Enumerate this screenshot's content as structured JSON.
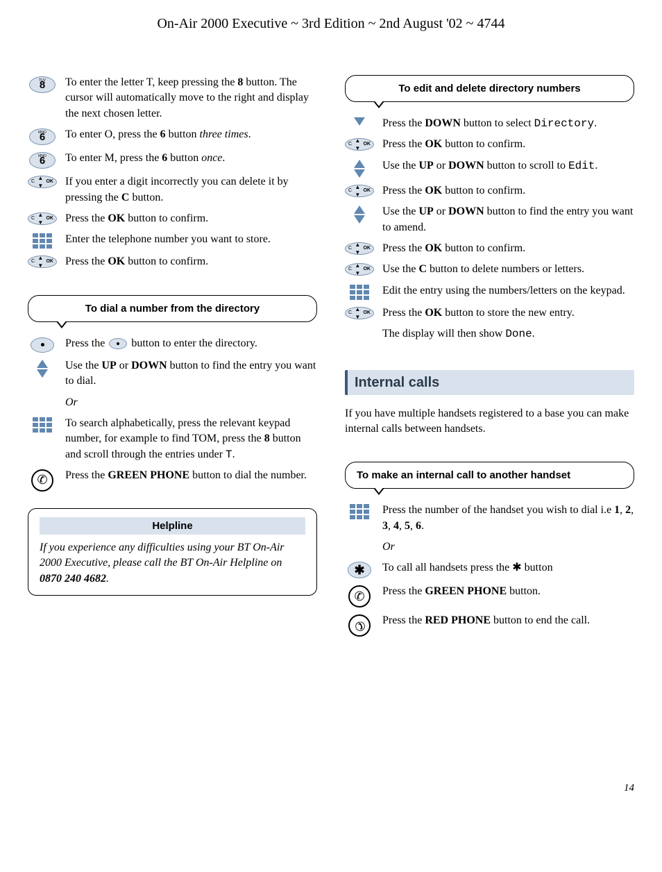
{
  "header": "On-Air 2000 Executive ~ 3rd Edition ~ 2nd August '02 ~ 4744",
  "page_number": "14",
  "colors": {
    "key_bg": "#d9e2ec",
    "key_border": "#7a94b0",
    "arrow": "#6088b0",
    "section_bg": "#d9e2ec",
    "section_border": "#3a5a7a"
  },
  "left": {
    "steps_top": [
      {
        "icon": "key-8",
        "html": "To enter the letter T, keep pressing the <strong>8</strong> button. The cursor will automatically move to the right and display the next chosen letter."
      },
      {
        "icon": "key-6",
        "html": "To enter O, press the <strong>6</strong> button <em>three times</em>."
      },
      {
        "icon": "key-6",
        "html": "To enter M, press the <strong>6</strong> button <em>once</em>."
      },
      {
        "icon": "nav",
        "html": "If you enter a digit incorrectly you can delete it by pressing the <strong>C</strong> button."
      },
      {
        "icon": "nav",
        "html": "Press the <strong>OK</strong> button to confirm."
      },
      {
        "icon": "keypad",
        "html": "Enter the telephone number you want to store."
      },
      {
        "icon": "nav",
        "html": "Press the <strong>OK</strong> button to confirm."
      }
    ],
    "callout_dial": "To dial a number from the directory",
    "steps_dial": [
      {
        "icon": "dot",
        "html": "Press the <span class=\"dot-btn-inline\"></span> button to enter the directory."
      },
      {
        "icon": "updown",
        "html": "Use the <strong>UP</strong> or <strong>DOWN</strong> button to find the entry you want to dial."
      },
      {
        "icon": "none",
        "html": "<em>Or</em>"
      },
      {
        "icon": "keypad",
        "html": "To search alphabetically, press the relevant keypad number, for example to find TOM, press the <strong>8</strong> button and scroll through the entries under <span class=\"mono\">T</span>."
      },
      {
        "icon": "phone-green",
        "html": "Press the <strong>GREEN PHONE</strong> button to dial the number."
      }
    ],
    "helpline": {
      "title": "Helpline",
      "html": "If you experience any difficulties using your BT On-Air 2000 Executive, please call the BT On-Air Helpline on <strong>0870 240 4682</strong>."
    }
  },
  "right": {
    "callout_edit": "To edit and delete directory numbers",
    "steps_edit": [
      {
        "icon": "down",
        "html": "Press the <strong>DOWN</strong> button to select <span class=\"mono\">Directory</span>."
      },
      {
        "icon": "nav",
        "html": "Press the <strong>OK</strong> button to confirm."
      },
      {
        "icon": "updown",
        "html": "Use the <strong>UP</strong> or <strong>DOWN</strong> button to scroll to <span class=\"mono\">Edit</span>."
      },
      {
        "icon": "nav",
        "html": "Press the <strong>OK</strong> button to confirm."
      },
      {
        "icon": "updown",
        "html": "Use the <strong>UP</strong> or <strong>DOWN</strong> button to find the entry you want to amend."
      },
      {
        "icon": "nav",
        "html": "Press the <strong>OK</strong> button to confirm."
      },
      {
        "icon": "nav",
        "html": "Use the <strong>C</strong> button to delete numbers or letters."
      },
      {
        "icon": "keypad",
        "html": "Edit the entry using the numbers/letters on the keypad."
      },
      {
        "icon": "nav",
        "html": "Press the <strong>OK</strong> button to store the new entry."
      },
      {
        "icon": "none",
        "html": "The display will then show <span class=\"mono\">Done</span>."
      }
    ],
    "section_internal": "Internal calls",
    "internal_intro": "If you have multiple handsets registered to a base you can make internal calls between handsets.",
    "callout_internal": "To make an internal call to another handset",
    "steps_internal": [
      {
        "icon": "keypad",
        "html": "Press the number of the handset you wish to dial i.e <strong>1</strong>, <strong>2</strong>, <strong>3</strong>, <strong>4</strong>, <strong>5</strong>, <strong>6</strong>."
      },
      {
        "icon": "none",
        "html": "<em>Or</em>"
      },
      {
        "icon": "star",
        "html": "To call all handsets press the ✱ button"
      },
      {
        "icon": "phone-green",
        "html": "Press the <strong>GREEN PHONE</strong> button."
      },
      {
        "icon": "phone-red",
        "html": "Press the <strong>RED PHONE</strong> button to end the call."
      }
    ]
  }
}
